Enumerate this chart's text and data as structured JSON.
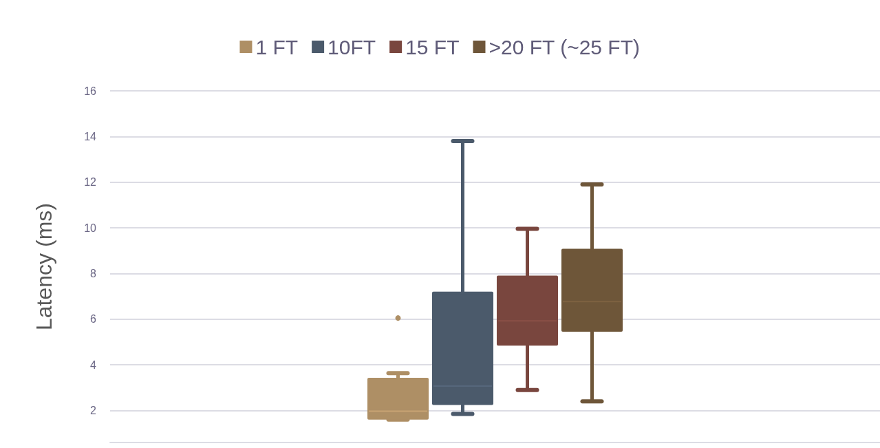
{
  "chart_data": {
    "type": "box",
    "ylabel": "Latency (ms)",
    "categories": [
      null
    ],
    "ylim": [
      0.6,
      16
    ],
    "yticks": [
      2,
      4,
      6,
      8,
      10,
      12,
      14,
      16
    ],
    "grid": "y",
    "legend": "top",
    "series": [
      {
        "name": "1 FT",
        "color": "#ae8f65",
        "boxes": [
          {
            "low": 1.6,
            "q1": 1.66,
            "median": 1.97,
            "q3": 3.37,
            "high": 3.64,
            "outliers": [
              6.05
            ]
          }
        ]
      },
      {
        "name": "10FT",
        "color": "#4b5a6b",
        "boxes": [
          {
            "low": 1.85,
            "q1": 2.3,
            "median": 3.07,
            "q3": 7.15,
            "high": 13.8
          }
        ]
      },
      {
        "name": "15 FT",
        "color": "#79463e",
        "boxes": [
          {
            "low": 2.9,
            "q1": 4.9,
            "median": 5.93,
            "q3": 7.85,
            "high": 9.96
          }
        ]
      },
      {
        "name": ">20 FT (~25 FT)",
        "color": "#6e5639",
        "boxes": [
          {
            "low": 2.4,
            "q1": 5.51,
            "median": 6.77,
            "q3": 9.02,
            "high": 11.9
          }
        ]
      }
    ]
  }
}
